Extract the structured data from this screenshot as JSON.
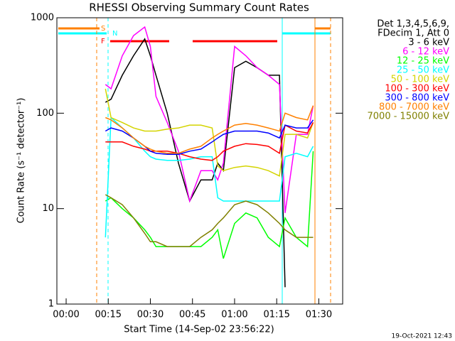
{
  "chart_data": {
    "type": "line",
    "title": "RHESSI Observing Summary Count Rates",
    "x_label": "Start Time (14-Sep-02 23:56:22)",
    "y_label": "Count Rate (s⁻¹ detector⁻¹)",
    "legend_header": [
      "Det 1,3,4,5,6,9,",
      "FDecim 1, Att 0"
    ],
    "annotations": [
      "S",
      "N",
      "F"
    ],
    "timestamp": "19-Oct-2021 12:43",
    "y_log": true,
    "xlim": [
      -3.3,
      98.5
    ],
    "ylim": [
      1,
      1000
    ],
    "xticks": [
      {
        "value": 0,
        "label": "00:00"
      },
      {
        "value": 15,
        "label": "00:15"
      },
      {
        "value": 30,
        "label": "00:30"
      },
      {
        "value": 45,
        "label": "00:45"
      },
      {
        "value": 60,
        "label": "01:00"
      },
      {
        "value": 75,
        "label": "01:15"
      },
      {
        "value": 90,
        "label": "01:30"
      }
    ],
    "yticks": [
      1,
      10,
      100,
      1000
    ],
    "x": [
      14,
      16,
      20,
      24,
      28,
      30,
      32,
      36,
      40,
      44,
      48,
      52,
      54,
      56,
      60,
      64,
      68,
      72,
      76,
      78,
      82,
      86,
      88
    ],
    "series": [
      {
        "name": "3 - 6 keV",
        "color": "#000000",
        "values": [
          130,
          140,
          250,
          400,
          600,
          400,
          250,
          100,
          30,
          12,
          20,
          20,
          30,
          25,
          300,
          350,
          300,
          250,
          250,
          1.5,
          null,
          null,
          null
        ]
      },
      {
        "name": "6 - 12 keV",
        "color": "#ff00ff",
        "values": [
          200,
          180,
          400,
          650,
          800,
          500,
          150,
          80,
          40,
          12,
          25,
          25,
          20,
          30,
          500,
          400,
          300,
          250,
          200,
          9,
          60,
          60,
          120
        ]
      },
      {
        "name": "12 - 25 keV",
        "color": "#00ff00",
        "values": [
          12,
          13,
          10,
          8,
          6,
          5,
          4,
          4,
          4,
          4,
          4,
          5,
          6,
          3,
          7,
          9,
          8,
          5,
          4,
          8,
          5,
          4,
          40
        ]
      },
      {
        "name": "25 - 50 keV",
        "color": "#00ffff",
        "values": [
          5,
          90,
          70,
          55,
          40,
          35,
          33,
          32,
          32,
          33,
          35,
          35,
          13,
          12,
          12,
          12,
          12,
          12,
          12,
          35,
          38,
          35,
          45
        ]
      },
      {
        "name": "50 - 100 keV",
        "color": "#d4d400",
        "values": [
          180,
          90,
          80,
          70,
          65,
          65,
          65,
          68,
          70,
          75,
          75,
          70,
          28,
          25,
          27,
          28,
          27,
          25,
          22,
          60,
          60,
          55,
          80
        ]
      },
      {
        "name": "100 - 300 keV",
        "color": "#ff0000",
        "values": [
          50,
          50,
          50,
          45,
          42,
          40,
          40,
          40,
          38,
          35,
          33,
          32,
          35,
          40,
          45,
          48,
          47,
          45,
          38,
          75,
          65,
          62,
          80
        ]
      },
      {
        "name": "300 - 800 keV",
        "color": "#0000ff",
        "values": [
          65,
          70,
          65,
          55,
          45,
          40,
          38,
          37,
          37,
          40,
          42,
          50,
          55,
          60,
          65,
          65,
          65,
          62,
          55,
          75,
          70,
          70,
          85
        ]
      },
      {
        "name": "800 - 7000 keV",
        "color": "#ff8000",
        "values": [
          90,
          85,
          70,
          55,
          45,
          42,
          40,
          38,
          38,
          42,
          45,
          55,
          60,
          65,
          75,
          78,
          75,
          70,
          65,
          100,
          90,
          85,
          120
        ]
      },
      {
        "name": "7000 - 15000 keV",
        "color": "#808000",
        "values": [
          14,
          13,
          11,
          8,
          5.5,
          4.5,
          4.5,
          4,
          4,
          4,
          5,
          6,
          7,
          8,
          11,
          12,
          11,
          9,
          7,
          6,
          5,
          5,
          5
        ]
      }
    ]
  }
}
